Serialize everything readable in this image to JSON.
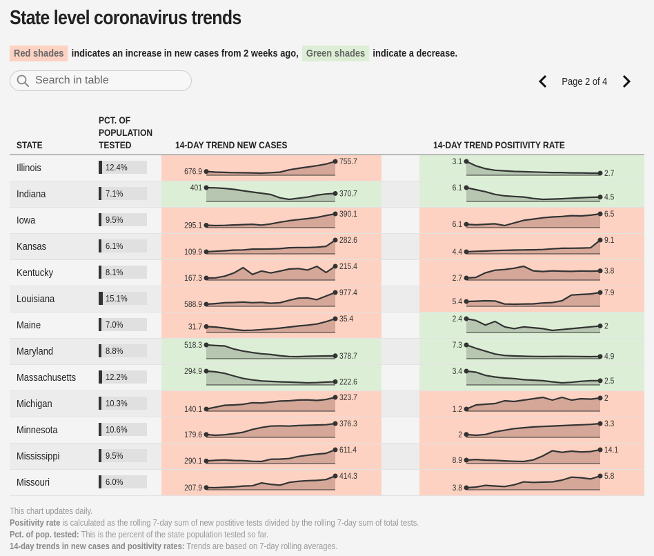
{
  "title": "State level coronavirus trends",
  "legend": {
    "red_label": "Red shades",
    "red_text": "indicates an increase in new cases from 2 weeks ago,",
    "green_label": "Green shades",
    "green_text": "indicate a decrease."
  },
  "search": {
    "placeholder": "Search in table"
  },
  "pager": {
    "label": "Page 2 of 4"
  },
  "columns": {
    "state": "STATE",
    "pct_l1": "PCT. OF",
    "pct_l2": "POPULATION",
    "pct_l3": "TESTED",
    "cases": "14-DAY TREND NEW CASES",
    "positivity": "14-DAY TREND POSITIVITY RATE"
  },
  "colors": {
    "increase_bg": "#fdd2c2",
    "increase_fill": "#d4a798",
    "decrease_bg": "#dcefd6",
    "decrease_fill": "#b6c6b0",
    "line": "#333333"
  },
  "chart_data": {
    "type": "table",
    "title": "State level coronavirus trends",
    "columns": [
      "State",
      "Pct. of population tested",
      "14-day trend new cases",
      "14-day trend positivity rate"
    ],
    "rows": [
      {
        "state": "Illinois",
        "pct": 12.4,
        "pct_label": "12.4%",
        "cases": {
          "trend": "up",
          "start": "676.9",
          "end": "755.7",
          "values": [
            676.9,
            672,
            670,
            668,
            667,
            666,
            664,
            668,
            672,
            690,
            702,
            712,
            722,
            735,
            755.7
          ]
        },
        "pos": {
          "trend": "down",
          "start": "3.1",
          "end": "2.7",
          "values": [
            3.1,
            2.95,
            2.85,
            2.8,
            2.78,
            2.76,
            2.75,
            2.74,
            2.73,
            2.72,
            2.72,
            2.71,
            2.71,
            2.7,
            2.7
          ]
        }
      },
      {
        "state": "Indiana",
        "pct": 7.1,
        "pct_label": "7.1%",
        "cases": {
          "trend": "down",
          "start": "401",
          "end": "370.7",
          "values": [
            401,
            400,
            397,
            392,
            385,
            378,
            372,
            365,
            348,
            340,
            346,
            352,
            362,
            368,
            370.7
          ]
        },
        "pos": {
          "trend": "down",
          "start": "6.1",
          "end": "4.5",
          "values": [
            6.1,
            5.75,
            5.4,
            4.95,
            4.7,
            4.6,
            4.5,
            4.25,
            4.1,
            4.15,
            4.2,
            4.3,
            4.38,
            4.45,
            4.5
          ]
        }
      },
      {
        "state": "Iowa",
        "pct": 9.5,
        "pct_label": "9.5%",
        "cases": {
          "trend": "up",
          "start": "295.1",
          "end": "390.1",
          "values": [
            295.1,
            292,
            294,
            297,
            300,
            303,
            296,
            306,
            320,
            333,
            342,
            350,
            360,
            376,
            390.1
          ]
        },
        "pos": {
          "trend": "up",
          "start": "6.1",
          "end": "6.5",
          "values": [
            6.1,
            6.08,
            6.1,
            6.12,
            6.05,
            6.15,
            6.25,
            6.3,
            6.35,
            6.38,
            6.4,
            6.43,
            6.42,
            6.45,
            6.5
          ]
        }
      },
      {
        "state": "Kansas",
        "pct": 6.1,
        "pct_label": "6.1%",
        "cases": {
          "trend": "up",
          "start": "109.9",
          "end": "282.6",
          "values": [
            109.9,
            118,
            125,
            135,
            137,
            150,
            150,
            152,
            157,
            170,
            172,
            172,
            178,
            190,
            282.6
          ]
        },
        "pos": {
          "trend": "up",
          "start": "4.4",
          "end": "9.1",
          "values": [
            4.4,
            4.6,
            4.7,
            4.9,
            5.0,
            5.1,
            5.15,
            5.2,
            5.3,
            5.6,
            5.8,
            5.85,
            5.9,
            6.0,
            9.1
          ]
        }
      },
      {
        "state": "Kentucky",
        "pct": 8.1,
        "pct_label": "8.1%",
        "cases": {
          "trend": "up",
          "start": "167.3",
          "end": "215.4",
          "values": [
            167.3,
            168,
            175,
            188,
            210,
            182,
            196,
            188,
            196,
            204,
            206,
            200,
            215,
            190,
            215.4
          ]
        },
        "pos": {
          "trend": "up",
          "start": "2.7",
          "end": "3.8",
          "values": [
            2.7,
            2.8,
            3.5,
            3.9,
            4.0,
            4.2,
            4.5,
            3.8,
            3.7,
            3.8,
            3.75,
            3.72,
            3.78,
            3.75,
            3.8
          ]
        }
      },
      {
        "state": "Louisiana",
        "pct": 15.1,
        "pct_label": "15.1%",
        "cases": {
          "trend": "up",
          "start": "588.9",
          "end": "977.4",
          "values": [
            588.9,
            610,
            640,
            645,
            660,
            640,
            650,
            620,
            640,
            720,
            790,
            800,
            740,
            860,
            977.4
          ]
        },
        "pos": {
          "trend": "up",
          "start": "5.4",
          "end": "7.9",
          "values": [
            5.4,
            5.5,
            5.6,
            5.55,
            4.7,
            4.65,
            4.7,
            4.75,
            5.0,
            5.1,
            5.6,
            7.2,
            7.35,
            7.5,
            7.9
          ]
        }
      },
      {
        "state": "Maine",
        "pct": 7.0,
        "pct_label": "7.0%",
        "cases": {
          "trend": "up",
          "start": "31.7",
          "end": "35.4",
          "values": [
            31.7,
            31.5,
            31.0,
            30.4,
            29.9,
            30.0,
            30.3,
            30.6,
            31.0,
            31.5,
            32.0,
            32.4,
            32.9,
            34.0,
            35.4
          ]
        },
        "pos": {
          "trend": "down",
          "start": "2.4",
          "end": "2",
          "values": [
            2.4,
            2.3,
            2.05,
            2.25,
            1.95,
            1.85,
            1.95,
            1.9,
            1.85,
            1.75,
            1.8,
            1.85,
            1.9,
            1.95,
            2.0
          ]
        }
      },
      {
        "state": "Maryland",
        "pct": 8.8,
        "pct_label": "8.8%",
        "cases": {
          "trend": "down",
          "start": "518.3",
          "end": "378.7",
          "values": [
            518.3,
            510,
            505,
            465,
            440,
            420,
            405,
            395,
            380,
            370,
            368,
            372,
            375,
            377,
            378.7
          ]
        },
        "pos": {
          "trend": "down",
          "start": "7.3",
          "end": "4.9",
          "values": [
            7.3,
            6.6,
            6.0,
            5.4,
            5.1,
            5.0,
            4.95,
            4.9,
            4.88,
            4.9,
            4.92,
            4.9,
            4.88,
            4.86,
            4.9
          ]
        }
      },
      {
        "state": "Massachusetts",
        "pct": 12.2,
        "pct_label": "12.2%",
        "cases": {
          "trend": "down",
          "start": "294.9",
          "end": "222.6",
          "values": [
            294.9,
            290,
            280,
            262,
            245,
            235,
            228,
            225,
            222,
            220,
            218,
            215,
            217,
            220,
            222.6
          ]
        },
        "pos": {
          "trend": "down",
          "start": "3.4",
          "end": "2.5",
          "values": [
            3.4,
            3.3,
            3.0,
            2.85,
            2.75,
            2.7,
            2.6,
            2.55,
            2.5,
            2.4,
            2.3,
            2.35,
            2.45,
            2.5,
            2.5
          ]
        }
      },
      {
        "state": "Michigan",
        "pct": 10.3,
        "pct_label": "10.3%",
        "cases": {
          "trend": "up",
          "start": "140.1",
          "end": "323.7",
          "values": [
            140.1,
            170,
            200,
            205,
            215,
            240,
            235,
            250,
            265,
            270,
            282,
            285,
            275,
            290,
            323.7
          ]
        },
        "pos": {
          "trend": "up",
          "start": "1.2",
          "end": "2",
          "values": [
            1.2,
            1.5,
            1.55,
            1.6,
            1.8,
            1.75,
            1.85,
            1.95,
            2.05,
            1.85,
            2.05,
            1.85,
            1.95,
            1.92,
            2.0
          ]
        }
      },
      {
        "state": "Minnesota",
        "pct": 10.6,
        "pct_label": "10.6%",
        "cases": {
          "trend": "up",
          "start": "179.6",
          "end": "376.3",
          "values": [
            179.6,
            165,
            175,
            195,
            220,
            270,
            305,
            330,
            335,
            330,
            340,
            345,
            350,
            355,
            376.3
          ]
        },
        "pos": {
          "trend": "up",
          "start": "2",
          "end": "3.3",
          "values": [
            2.0,
            1.9,
            2.0,
            2.3,
            2.5,
            2.7,
            2.8,
            2.9,
            2.95,
            3.0,
            3.05,
            3.1,
            3.15,
            3.2,
            3.3
          ]
        }
      },
      {
        "state": "Mississippi",
        "pct": 9.5,
        "pct_label": "9.5%",
        "cases": {
          "trend": "up",
          "start": "290.1",
          "end": "611.4",
          "values": [
            290.1,
            310,
            320,
            305,
            300,
            280,
            275,
            340,
            345,
            360,
            420,
            455,
            485,
            510,
            611.4
          ]
        },
        "pos": {
          "trend": "up",
          "start": "8.9",
          "end": "14.1",
          "values": [
            8.9,
            9.2,
            8.9,
            8.8,
            8.5,
            8.3,
            8.2,
            9.0,
            11.0,
            13.6,
            12.8,
            13.4,
            13.0,
            13.2,
            14.1
          ]
        }
      },
      {
        "state": "Missouri",
        "pct": 6.0,
        "pct_label": "6.0%",
        "cases": {
          "trend": "up",
          "start": "207.9",
          "end": "414.3",
          "values": [
            207.9,
            205,
            212,
            220,
            235,
            240,
            290,
            265,
            250,
            300,
            320,
            330,
            335,
            350,
            414.3
          ]
        },
        "pos": {
          "trend": "up",
          "start": "3.8",
          "end": "5.8",
          "values": [
            3.8,
            3.9,
            4.2,
            4.1,
            4.0,
            4.3,
            4.8,
            4.7,
            4.75,
            4.8,
            5.1,
            5.6,
            5.5,
            5.3,
            5.8
          ]
        }
      }
    ]
  },
  "notes": {
    "line1": "This chart updates daily.",
    "line2_label": "Positivity rate",
    "line2_text": " is calculated as the rolling 7-day sum of new postitive tests divided by the rolling 7-day sum of total tests.",
    "line3_label": "Pct. of pop. tested:",
    "line3_text": " This is the percent of the state population tested so far.",
    "line4_label": "14-day trends in new cases and positivity rates:",
    "line4_text": " Trends are based on 7-day rolling averages."
  }
}
